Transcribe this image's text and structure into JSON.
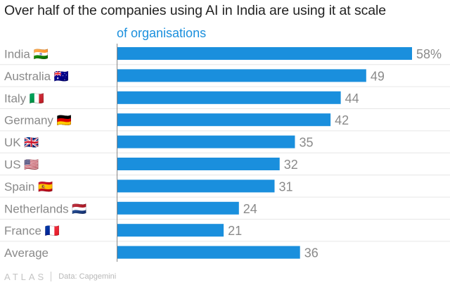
{
  "title": "Over half of the companies using AI in India are using it at scale",
  "footer": {
    "brand": "ATLAS",
    "source": "Data: Capgemini"
  },
  "colors": {
    "bar": "#1a8fdd",
    "subtitle": "#1a8fdd",
    "label": "#8a8a8a",
    "grid": "#e6e6e6",
    "axis": "#888888"
  },
  "chart_data": {
    "type": "bar",
    "orientation": "horizontal",
    "subtitle": "of organisations",
    "categories": [
      "India 🇮🇳",
      "Australia 🇦🇺",
      "Italy 🇮🇹",
      "Germany 🇩🇪",
      "UK 🇬🇧",
      "US 🇺🇸",
      "Spain 🇪🇸",
      "Netherlands 🇳🇱",
      "France 🇫🇷",
      "Average"
    ],
    "values": [
      58,
      49,
      44,
      42,
      35,
      32,
      31,
      24,
      21,
      36
    ],
    "value_labels": [
      "58%",
      "49",
      "44",
      "42",
      "35",
      "32",
      "31",
      "24",
      "21",
      "36"
    ],
    "xlim": [
      0,
      58
    ],
    "grid": true,
    "legend": "none"
  }
}
